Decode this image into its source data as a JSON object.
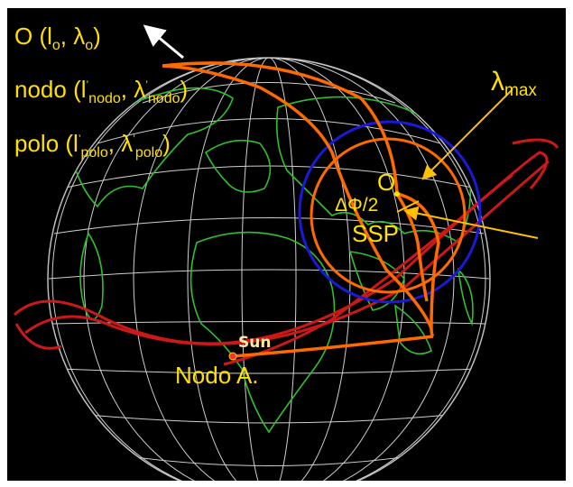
{
  "labels": {
    "origin": {
      "main": "O (l",
      "s1": "o",
      "mid": ", λ",
      "s2": "o",
      "end": ")"
    },
    "node": {
      "main": "nodo (l",
      "p1": "’",
      "s1": "nodo",
      "mid": ", λ",
      "p2": "’",
      "s2": "nodo",
      "end": ")"
    },
    "pole": {
      "main": "polo (l",
      "p1": "’",
      "s1": "polo",
      "mid": ", λ",
      "p2": "’",
      "s2": "polo",
      "end": ")"
    },
    "lambda_max": {
      "main": "λ",
      "sub": "max"
    },
    "center": "O",
    "delta_phi": "ΔΦ/2",
    "ssp": "SSP",
    "sun": "Sun",
    "ascending_node": "Nodo A."
  },
  "colors": {
    "label": "#ffe000",
    "arc": "#ff6a00",
    "circle_large": "#1a1ad8",
    "orbit": "#cc1818",
    "grid": "#d0d0d0",
    "land": "#2fc02f",
    "arrow_white": "#ffffff",
    "arrow_yellow": "#ffc000"
  }
}
